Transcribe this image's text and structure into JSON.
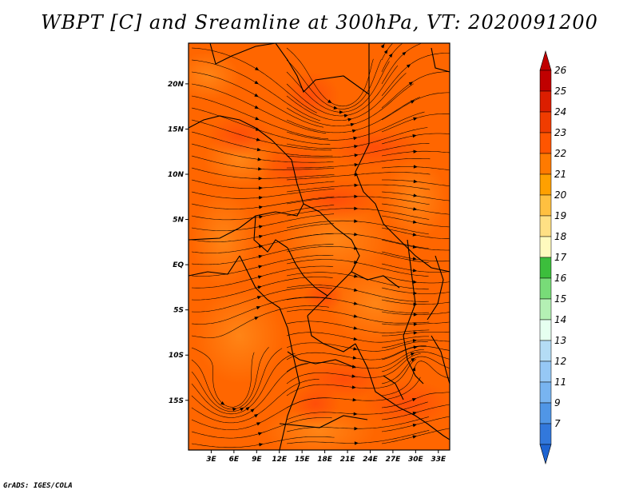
{
  "title": "WBPT [C] and Sreamline at 300hPa, VT: 2020091200",
  "credit": "GrADS: IGES/COLA",
  "map": {
    "lon_range": [
      0,
      34.5
    ],
    "lat_range": [
      -20.5,
      24.5
    ],
    "lat_ticks": [
      {
        "value": 20,
        "label": "20N"
      },
      {
        "value": 15,
        "label": "15N"
      },
      {
        "value": 10,
        "label": "10N"
      },
      {
        "value": 5,
        "label": "5N"
      },
      {
        "value": 0,
        "label": "EQ"
      },
      {
        "value": -5,
        "label": "5S"
      },
      {
        "value": -10,
        "label": "10S"
      },
      {
        "value": -15,
        "label": "15S"
      }
    ],
    "lon_ticks": [
      {
        "value": 3,
        "label": "3E"
      },
      {
        "value": 6,
        "label": "6E"
      },
      {
        "value": 9,
        "label": "9E"
      },
      {
        "value": 12,
        "label": "12E"
      },
      {
        "value": 15,
        "label": "15E"
      },
      {
        "value": 18,
        "label": "18E"
      },
      {
        "value": 21,
        "label": "21E"
      },
      {
        "value": 24,
        "label": "24E"
      },
      {
        "value": 27,
        "label": "27E"
      },
      {
        "value": 30,
        "label": "30E"
      },
      {
        "value": 33,
        "label": "33E"
      }
    ],
    "field_colors": {
      "base": "#ff6600",
      "warm": "#ff4b0a",
      "cool": "#ff8a1a"
    },
    "line_color": "#000000"
  },
  "colorbar": {
    "levels": [
      {
        "label": "26",
        "color": "#c00000"
      },
      {
        "label": "25",
        "color": "#dc1e00"
      },
      {
        "label": "24",
        "color": "#f03c00"
      },
      {
        "label": "23",
        "color": "#ff5500"
      },
      {
        "label": "22",
        "color": "#ff7a00"
      },
      {
        "label": "21",
        "color": "#ffa000"
      },
      {
        "label": "20",
        "color": "#ffc040"
      },
      {
        "label": "19",
        "color": "#ffe084"
      },
      {
        "label": "18",
        "color": "#fffabe"
      },
      {
        "label": "17",
        "color": "#3cbe3c"
      },
      {
        "label": "16",
        "color": "#78dc78"
      },
      {
        "label": "15",
        "color": "#b4f0b4"
      },
      {
        "label": "14",
        "color": "#e6fff0"
      },
      {
        "label": "13",
        "color": "#b4dcf5"
      },
      {
        "label": "12",
        "color": "#96c8f5"
      },
      {
        "label": "11",
        "color": "#78b4f0"
      },
      {
        "label": "9",
        "color": "#5096e6"
      },
      {
        "label": "7",
        "color": "#3278dc"
      }
    ],
    "bottom_color": "#1e64d2"
  }
}
